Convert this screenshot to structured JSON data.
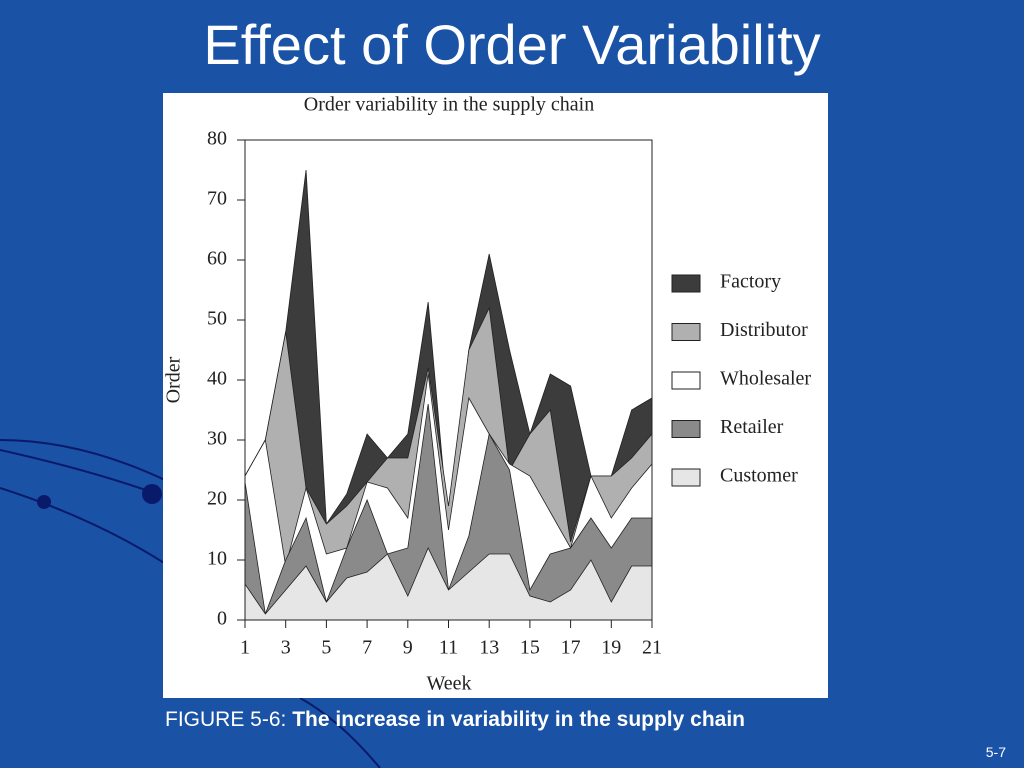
{
  "title": "Effect of Order Variability",
  "chart_data": {
    "type": "area",
    "title": "Order variability in the supply chain",
    "x_label": "Week",
    "y_label": "Order",
    "x": [
      1,
      2,
      3,
      4,
      5,
      6,
      7,
      8,
      9,
      10,
      11,
      12,
      13,
      14,
      15,
      16,
      17,
      18,
      19,
      20,
      21
    ],
    "xlim": [
      1,
      21
    ],
    "xticks": [
      1,
      3,
      5,
      7,
      9,
      11,
      13,
      15,
      17,
      19,
      21
    ],
    "ylim": [
      0,
      80
    ],
    "yticks": [
      0,
      10,
      20,
      30,
      40,
      50,
      60,
      70,
      80
    ],
    "legend": "right",
    "series": [
      {
        "name": "Factory",
        "color": "#3c3c3c",
        "values": [
          24,
          30,
          48,
          75,
          16,
          21,
          31,
          27,
          31,
          53,
          15,
          45,
          61,
          45,
          31,
          41,
          39,
          24,
          24,
          35,
          37
        ]
      },
      {
        "name": "Distributor",
        "color": "#b0b0b0",
        "values": [
          24,
          30,
          48,
          22,
          16,
          19,
          23,
          27,
          27,
          42,
          19,
          45,
          52,
          25,
          31,
          35,
          13,
          24,
          24,
          27,
          31
        ]
      },
      {
        "name": "Wholesaler",
        "color": "#ffffff",
        "values": [
          24,
          30,
          9,
          22,
          11,
          12,
          23,
          22,
          17,
          41,
          15,
          37,
          31,
          26,
          24,
          18,
          12,
          24,
          17,
          22,
          26
        ]
      },
      {
        "name": "Retailer",
        "color": "#8a8a8a",
        "values": [
          23,
          1,
          10,
          17,
          3,
          12,
          20,
          11,
          12,
          36,
          5,
          14,
          31,
          25,
          5,
          11,
          12,
          17,
          12,
          17,
          17
        ]
      },
      {
        "name": "Customer",
        "color": "#e6e6e6",
        "values": [
          6,
          1,
          5,
          9,
          3,
          7,
          8,
          11,
          4,
          12,
          5,
          8,
          11,
          11,
          4,
          3,
          5,
          10,
          3,
          9,
          9
        ]
      }
    ]
  },
  "caption": {
    "label": "FIGURE 5-6:",
    "text": "The increase in variability in the supply chain"
  },
  "page_number": "5-7"
}
